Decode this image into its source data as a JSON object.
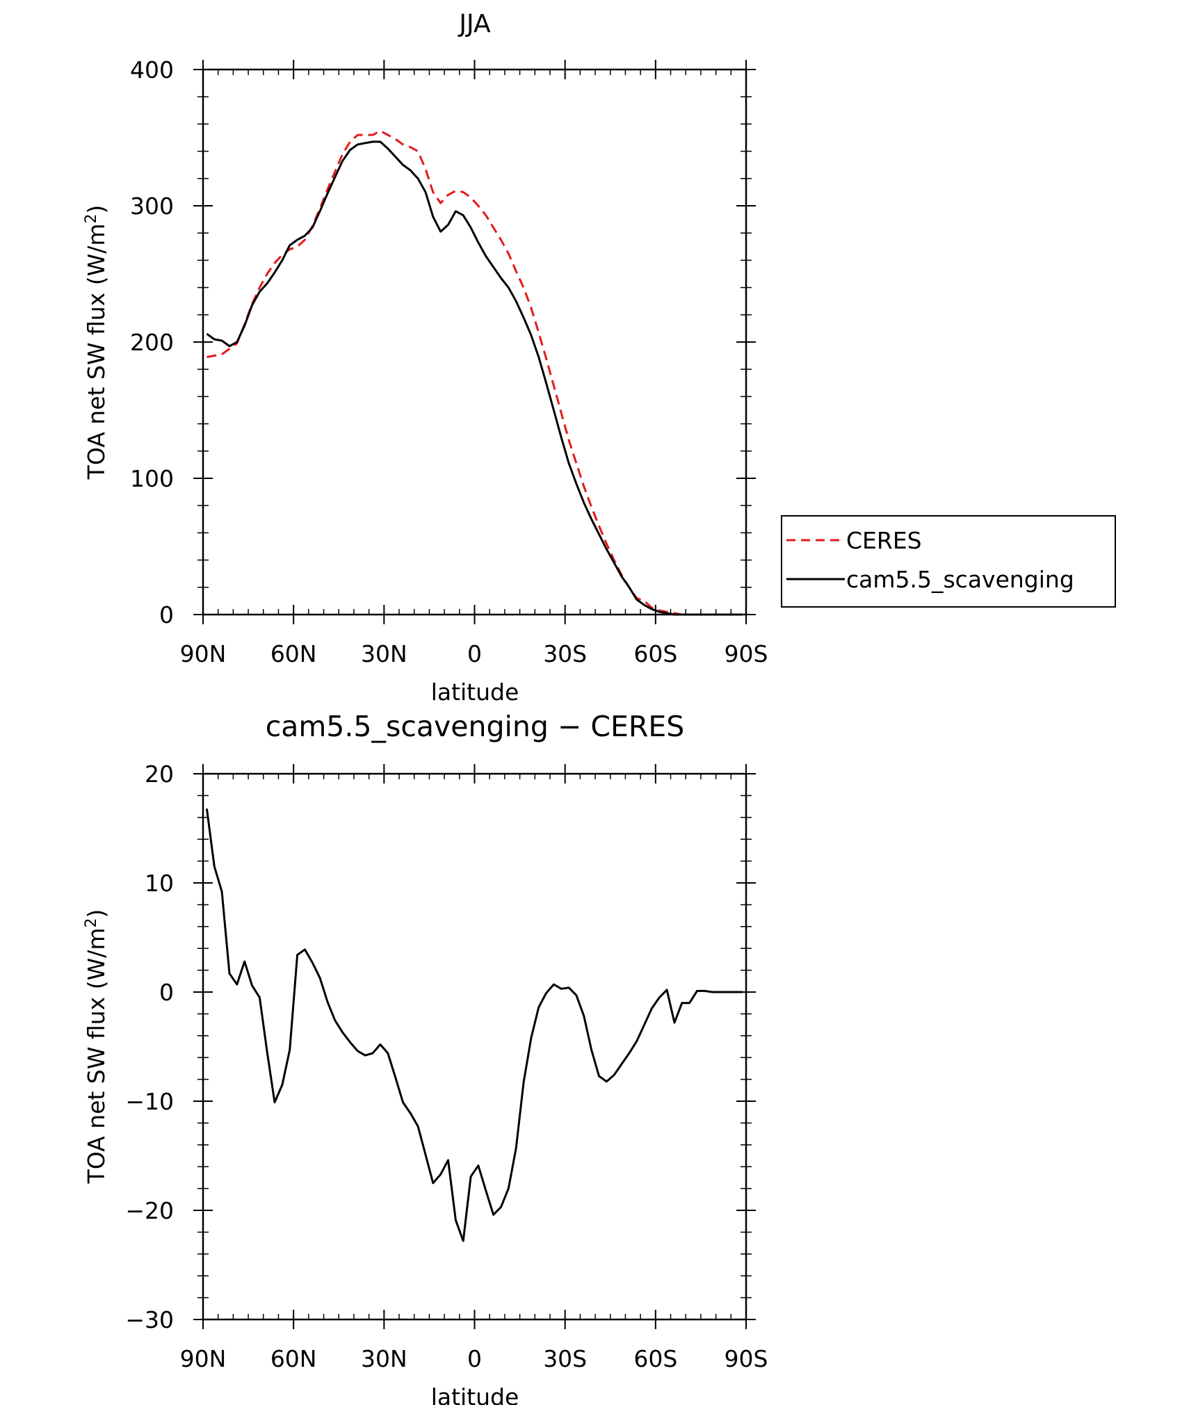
{
  "chart_data": [
    {
      "type": "line",
      "title": "JJA",
      "xlabel": "latitude",
      "ylabel": "TOA net SW flux (W/m",
      "ylabel_sup": "2",
      "ylabel_end": ")",
      "xlim": [
        90,
        -90
      ],
      "ylim": [
        0,
        400
      ],
      "xticks": [
        90,
        60,
        30,
        0,
        -30,
        -60,
        -90
      ],
      "xtick_labels": [
        "90N",
        "60N",
        "30N",
        "0",
        "30S",
        "60S",
        "90S"
      ],
      "yticks": [
        0,
        100,
        200,
        300,
        400
      ],
      "ytick_labels": [
        "0",
        "100",
        "200",
        "300",
        "400"
      ],
      "legend": {
        "placement": "right-outside"
      },
      "x": [
        88.75,
        86.25,
        83.75,
        81.25,
        78.75,
        76.25,
        73.75,
        71.25,
        68.75,
        66.25,
        63.75,
        61.25,
        58.75,
        56.25,
        53.75,
        51.25,
        48.75,
        46.25,
        43.75,
        41.25,
        38.75,
        36.25,
        33.75,
        31.25,
        28.75,
        26.25,
        23.75,
        21.25,
        18.75,
        16.25,
        13.75,
        11.25,
        8.75,
        6.25,
        3.75,
        1.25,
        -1.25,
        -3.75,
        -6.25,
        -8.75,
        -11.25,
        -13.75,
        -16.25,
        -18.75,
        -21.25,
        -23.75,
        -26.25,
        -28.75,
        -31.25,
        -33.75,
        -36.25,
        -38.75,
        -41.25,
        -43.75,
        -46.25,
        -48.75,
        -51.25,
        -53.75,
        -56.25,
        -58.75,
        -61.25,
        -63.75,
        -66.25,
        -68.75,
        -71.25,
        -73.75,
        -76.25,
        -78.75,
        -81.25,
        -83.75,
        -86.25,
        -88.75
      ],
      "series": [
        {
          "name": "CERES",
          "color": "#e41a1c",
          "dash": "dashed",
          "values": [
            189,
            190,
            191,
            195,
            199,
            213,
            228,
            240,
            250,
            258,
            264,
            268,
            270,
            275,
            285,
            298,
            312,
            325,
            338,
            347,
            352,
            352,
            352,
            355,
            352,
            349,
            345,
            343,
            340,
            327,
            310,
            302,
            308,
            311,
            310,
            306,
            300,
            293,
            284,
            275,
            265,
            252,
            240,
            225,
            207,
            188,
            168,
            148,
            128,
            111,
            94,
            79,
            65,
            52,
            40,
            29,
            20,
            12,
            10,
            5,
            3,
            2,
            1,
            0,
            0,
            0,
            0,
            0,
            0,
            0,
            0,
            0
          ]
        },
        {
          "name": "cam5.5_scavenging",
          "color": "#000000",
          "dash": "solid",
          "values": [
            206,
            202,
            201,
            197,
            200,
            212,
            227,
            237,
            243,
            251,
            260,
            271,
            275,
            278,
            284,
            296,
            309,
            321,
            333,
            341,
            345,
            346,
            347,
            347,
            342,
            336,
            330,
            326,
            320,
            310,
            292,
            281,
            286,
            296,
            293,
            284,
            273,
            263,
            255,
            247,
            240,
            230,
            218,
            205,
            189,
            170,
            150,
            130,
            111,
            96,
            82,
            70,
            59,
            48,
            38,
            28,
            20,
            11,
            7,
            4,
            2,
            1,
            0,
            0,
            0,
            0,
            0,
            0,
            0,
            0,
            0,
            0
          ]
        }
      ]
    },
    {
      "type": "line",
      "title": "cam5.5_scavenging − CERES",
      "xlabel": "latitude",
      "ylabel": "TOA net SW flux (W/m",
      "ylabel_sup": "2",
      "ylabel_end": ")",
      "xlim": [
        90,
        -90
      ],
      "ylim": [
        -30,
        20
      ],
      "xticks": [
        90,
        60,
        30,
        0,
        -30,
        -60,
        -90
      ],
      "xtick_labels": [
        "90N",
        "60N",
        "30N",
        "0",
        "30S",
        "60S",
        "90S"
      ],
      "yticks": [
        -30,
        -20,
        -10,
        0,
        10,
        20
      ],
      "ytick_labels": [
        "−30",
        "−20",
        "−10",
        "0",
        "10",
        "20"
      ],
      "x": [
        88.75,
        86.25,
        83.75,
        81.25,
        78.75,
        76.25,
        73.75,
        71.25,
        68.75,
        66.25,
        63.75,
        61.25,
        58.75,
        56.25,
        53.75,
        51.25,
        48.75,
        46.25,
        43.75,
        41.25,
        38.75,
        36.25,
        33.75,
        31.25,
        28.75,
        26.25,
        23.75,
        21.25,
        18.75,
        16.25,
        13.75,
        11.25,
        8.75,
        6.25,
        3.75,
        1.25,
        -1.25,
        -3.75,
        -6.25,
        -8.75,
        -11.25,
        -13.75,
        -16.25,
        -18.75,
        -21.25,
        -23.75,
        -26.25,
        -28.75,
        -31.25,
        -33.75,
        -36.25,
        -38.75,
        -41.25,
        -43.75,
        -46.25,
        -48.75,
        -51.25,
        -53.75,
        -56.25,
        -58.75,
        -61.25,
        -63.75,
        -66.25,
        -68.75,
        -71.25,
        -73.75,
        -76.25,
        -78.75,
        -81.25,
        -83.75,
        -86.25,
        -88.75
      ],
      "series": [
        {
          "color": "#000000",
          "dash": "solid",
          "values": [
            16.8,
            11.5,
            9.2,
            1.7,
            0.7,
            2.8,
            0.6,
            -0.5,
            -5.5,
            -10.1,
            -8.5,
            -5.3,
            3.4,
            3.9,
            2.7,
            1.3,
            -0.9,
            -2.6,
            -3.7,
            -4.6,
            -5.4,
            -5.8,
            -5.6,
            -4.8,
            -5.6,
            -7.8,
            -10.1,
            -11.1,
            -12.3,
            -14.9,
            -17.5,
            -16.7,
            -15.4,
            -20.9,
            -22.8,
            -16.9,
            -15.9,
            -18.2,
            -20.4,
            -19.7,
            -18.0,
            -14.3,
            -8.3,
            -4.2,
            -1.4,
            -0.1,
            0.7,
            0.3,
            0.4,
            -0.3,
            -2.2,
            -5.3,
            -7.7,
            -8.2,
            -7.6,
            -6.6,
            -5.6,
            -4.5,
            -3.0,
            -1.5,
            -0.5,
            0.2,
            -2.8,
            -1.0,
            -1.0,
            0.1,
            0.1,
            0.0,
            0.0,
            0.0,
            0.0,
            0.0
          ]
        }
      ]
    }
  ]
}
